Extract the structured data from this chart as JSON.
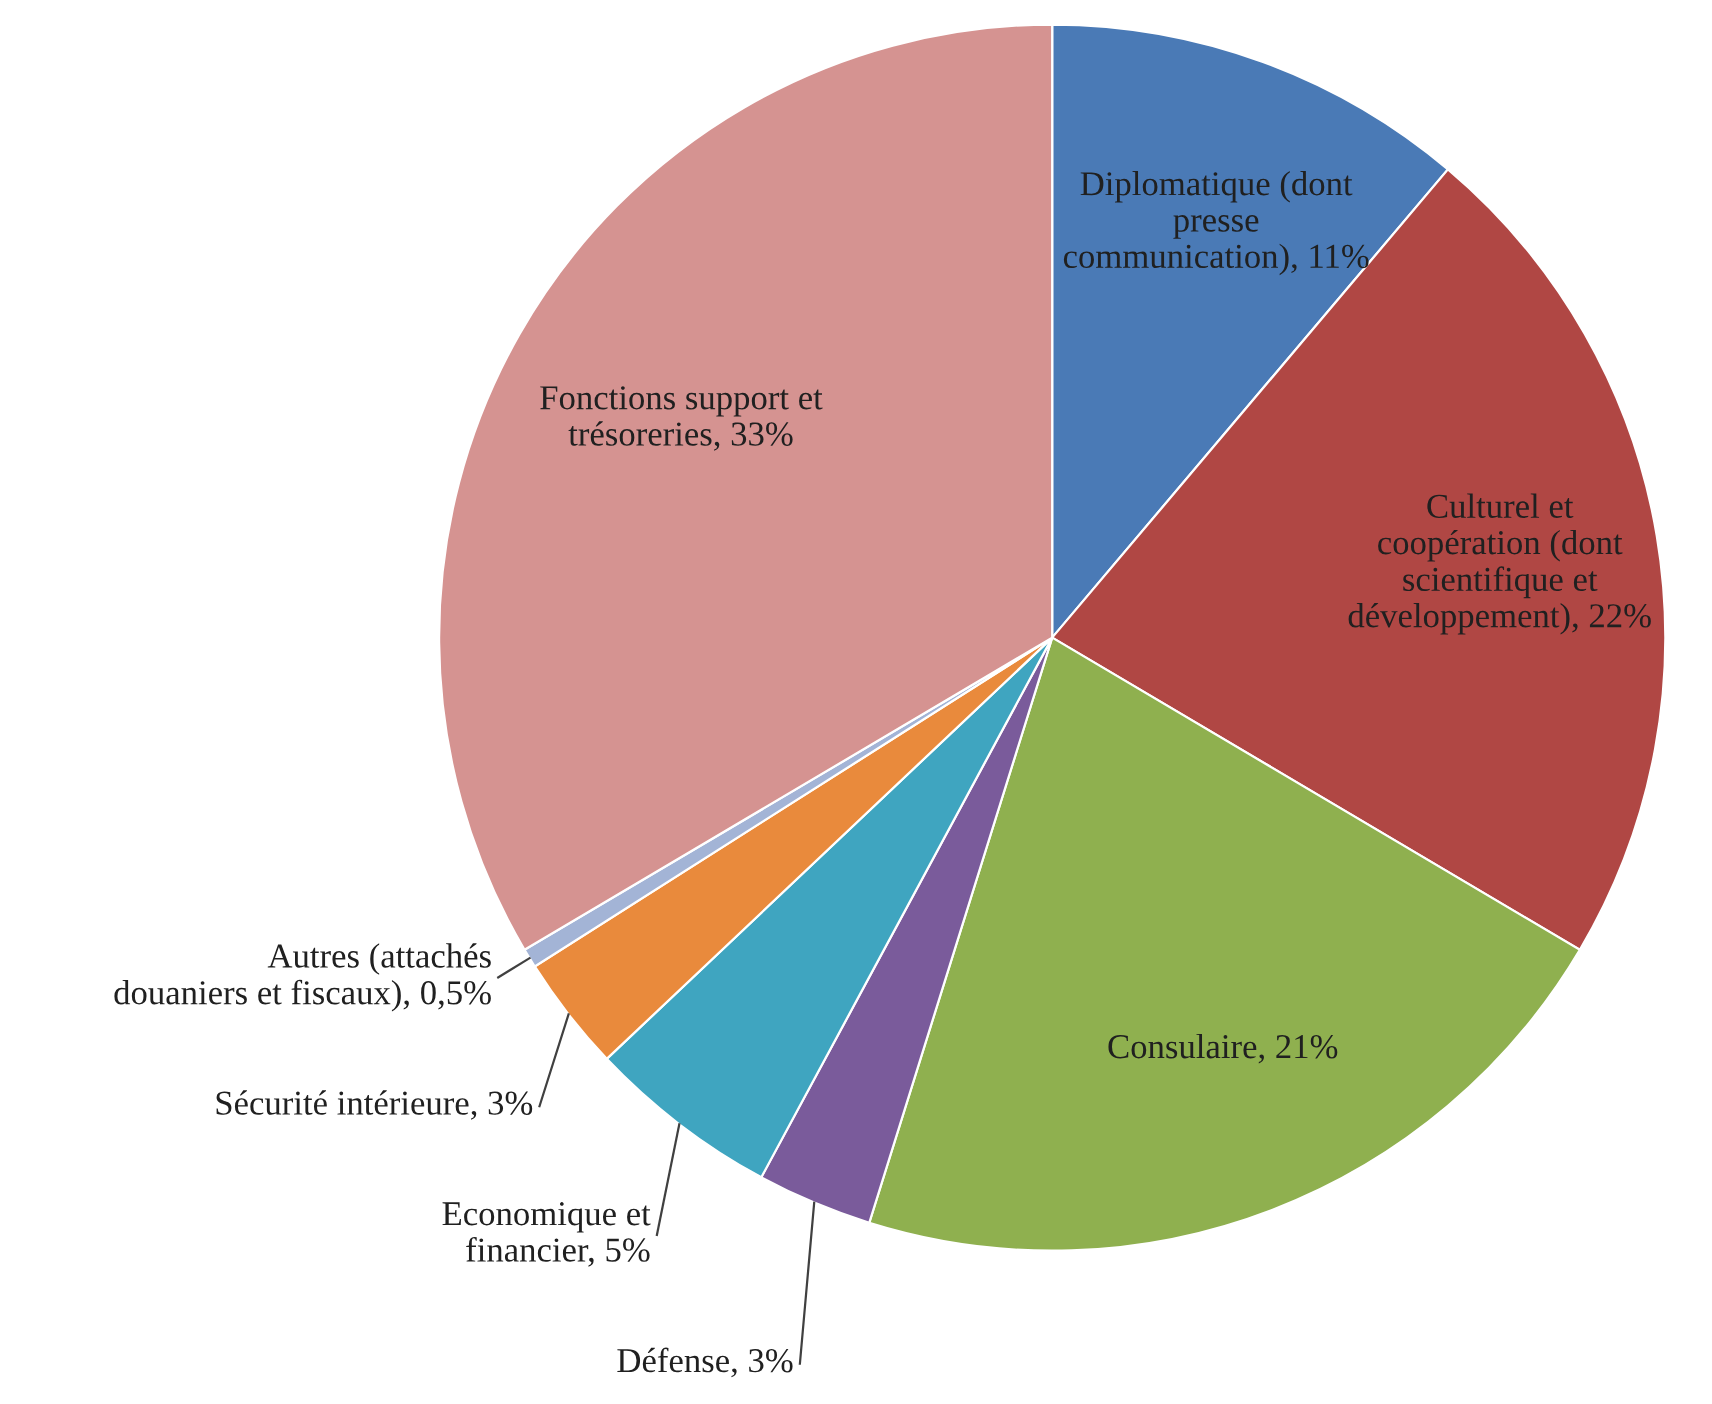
{
  "chart_data": {
    "type": "pie",
    "categories": [
      "Diplomatique (dont\npresse\ncommunication)",
      "Culturel et\ncoopération (dont\nscientifique et\ndéveloppement)",
      "Consulaire",
      "Défense",
      "Economique et\nfinancier",
      "Sécurité intérieure",
      "Autres (attachés\ndouaniers et fiscaux)",
      "Fonctions support et\ntrésoreries"
    ],
    "values": [
      11,
      22,
      21,
      3,
      5,
      3,
      0.5,
      33
    ],
    "value_labels": [
      "11%",
      "22%",
      "21%",
      "3%",
      "5%",
      "3%",
      "0,5%",
      "33%"
    ],
    "colors": [
      "#4a7ab6",
      "#b04744",
      "#8fb04f",
      "#7a5b9b",
      "#3fa5c0",
      "#e98a3c",
      "#a3b4d6",
      "#d59391"
    ],
    "legend": false
  }
}
